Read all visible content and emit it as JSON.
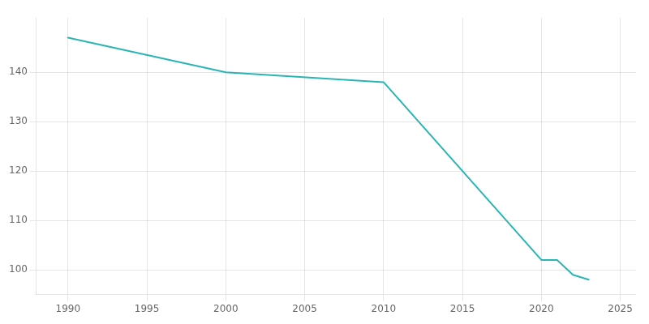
{
  "chart_data": {
    "type": "line",
    "x": [
      1990,
      2000,
      2010,
      2020,
      2021,
      2022,
      2023
    ],
    "values": [
      147,
      140,
      138,
      102,
      102,
      99,
      98
    ],
    "color": "#2ab5b5",
    "xlim": [
      1988,
      2026
    ],
    "ylim": [
      95,
      151
    ],
    "xticks": [
      1990,
      1995,
      2000,
      2005,
      2010,
      2015,
      2020,
      2025
    ],
    "yticks": [
      100,
      110,
      120,
      130,
      140
    ],
    "grid": true
  }
}
